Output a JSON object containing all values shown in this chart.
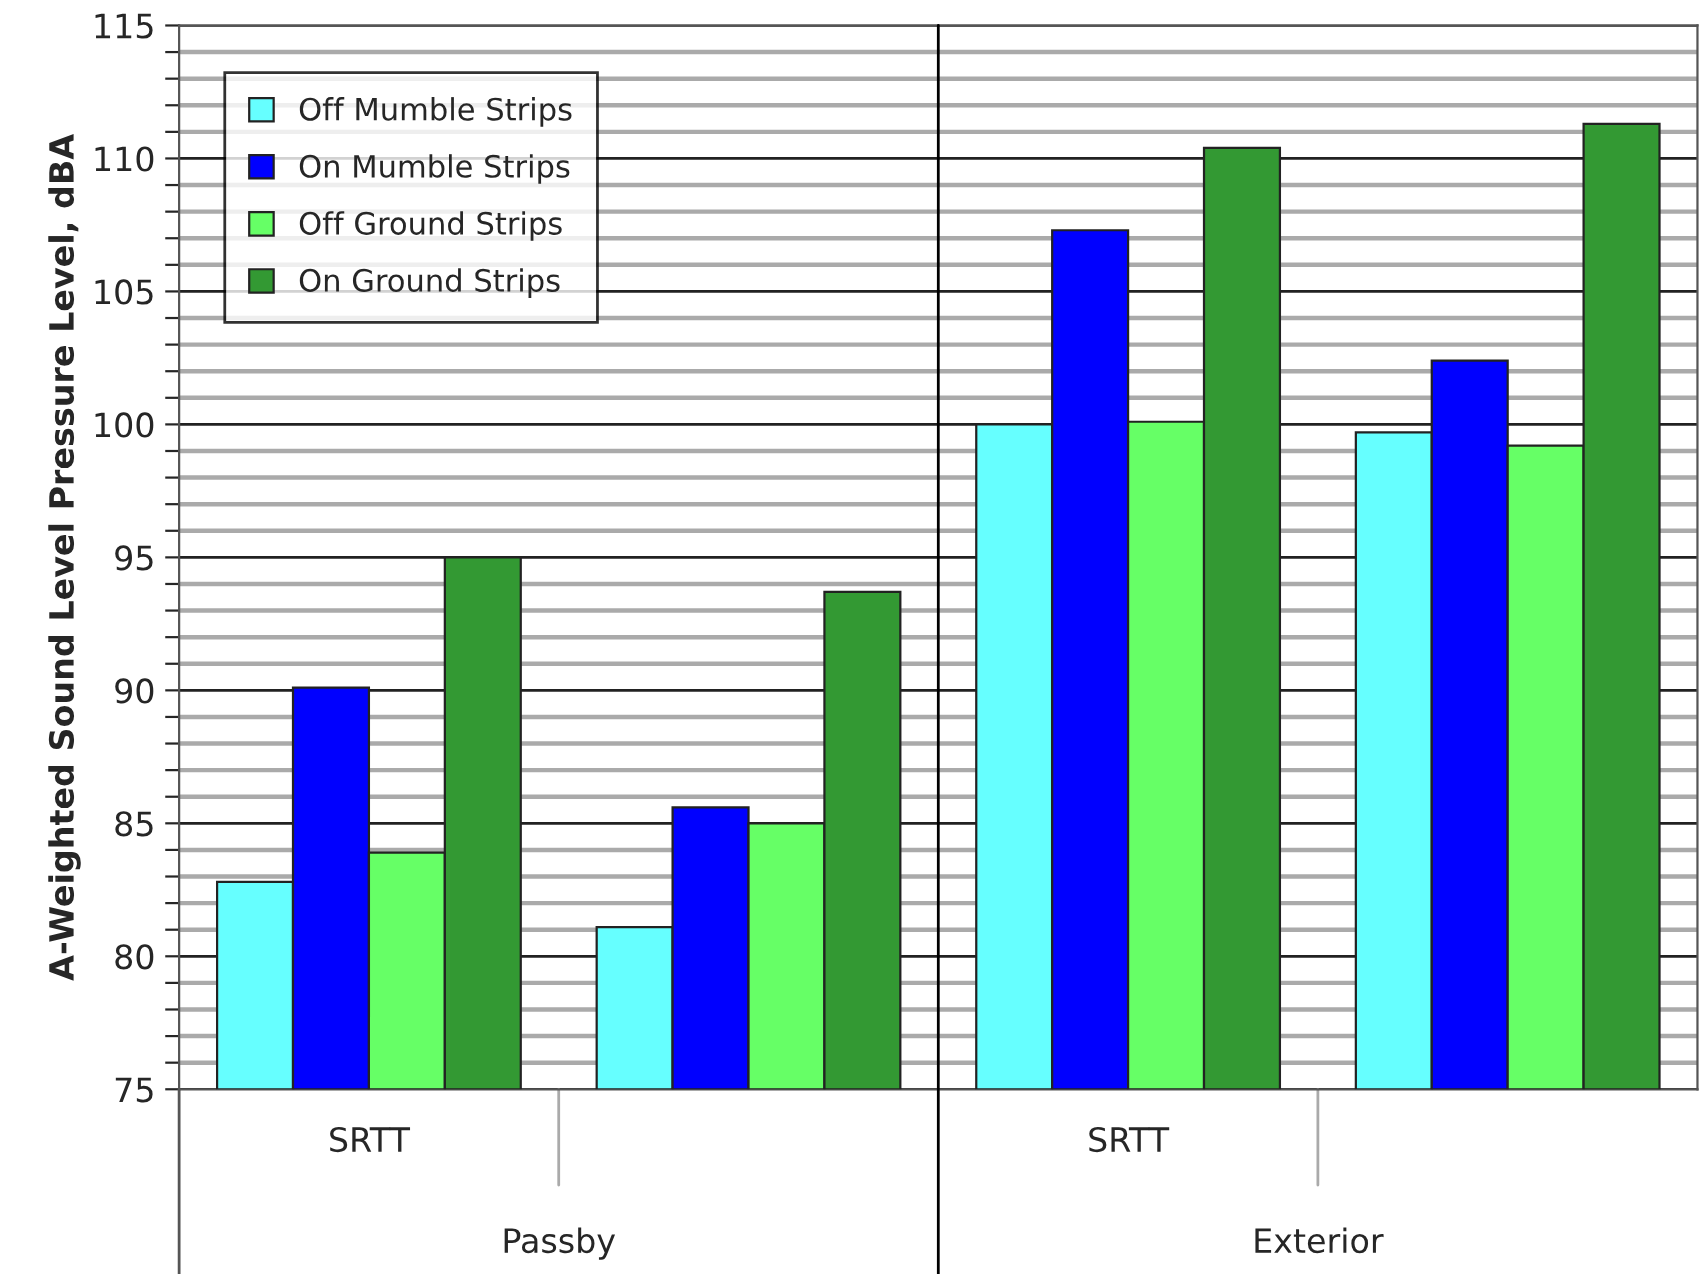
{
  "chart_data": {
    "type": "bar",
    "ylabel": "A-Weighted Sound Level Pressure Level, dBA",
    "categories": [
      "SRTT",
      null,
      "SRTT",
      null
    ],
    "series": [
      {
        "name": "Off Mumble Strips",
        "color": "#66ffff",
        "values": [
          82.8,
          81.1,
          100.0,
          99.7
        ]
      },
      {
        "name": "On Mumble Strips",
        "color": "#0000ff",
        "values": [
          90.1,
          85.6,
          107.3,
          102.4
        ]
      },
      {
        "name": "Off Ground Strips",
        "color": "#66ff66",
        "values": [
          83.9,
          85.0,
          100.1,
          99.2
        ]
      },
      {
        "name": "On Ground Strips",
        "color": "#339933",
        "values": [
          95.0,
          93.7,
          110.4,
          111.3
        ]
      }
    ],
    "ylim": [
      75,
      115
    ],
    "yticks": [
      75,
      {
        "value": 76,
        "label": null
      },
      {
        "value": 77,
        "label": null
      },
      {
        "value": 78,
        "label": null
      },
      {
        "value": 79,
        "label": null
      },
      80,
      {
        "value": 81,
        "label": null
      },
      {
        "value": 82,
        "label": null
      },
      {
        "value": 83,
        "label": null
      },
      {
        "value": 84,
        "label": null
      },
      85,
      {
        "value": 86,
        "label": null
      },
      {
        "value": 87,
        "label": null
      },
      {
        "value": 88,
        "label": null
      },
      {
        "value": 89,
        "label": null
      },
      90,
      {
        "value": 91,
        "label": null
      },
      {
        "value": 92,
        "label": null
      },
      {
        "value": 93,
        "label": null
      },
      {
        "value": 94,
        "label": null
      },
      95,
      {
        "value": 96,
        "label": null
      },
      {
        "value": 97,
        "label": null
      },
      {
        "value": 98,
        "label": null
      },
      {
        "value": 99,
        "label": null
      },
      100,
      {
        "value": 101,
        "label": null
      },
      {
        "value": 102,
        "label": null
      },
      {
        "value": 103,
        "label": null
      },
      {
        "value": 104,
        "label": null
      },
      105,
      {
        "value": 106,
        "label": null
      },
      {
        "value": 107,
        "label": null
      },
      {
        "value": 108,
        "label": null
      },
      {
        "value": 109,
        "label": null
      },
      110,
      {
        "value": 111,
        "label": null
      },
      {
        "value": 112,
        "label": null
      },
      {
        "value": 113,
        "label": null
      },
      {
        "value": 114,
        "label": null
      },
      115
    ],
    "grid": "y",
    "legend": "top left",
    "annotations": [
      "Passby",
      "Exterior"
    ]
  }
}
